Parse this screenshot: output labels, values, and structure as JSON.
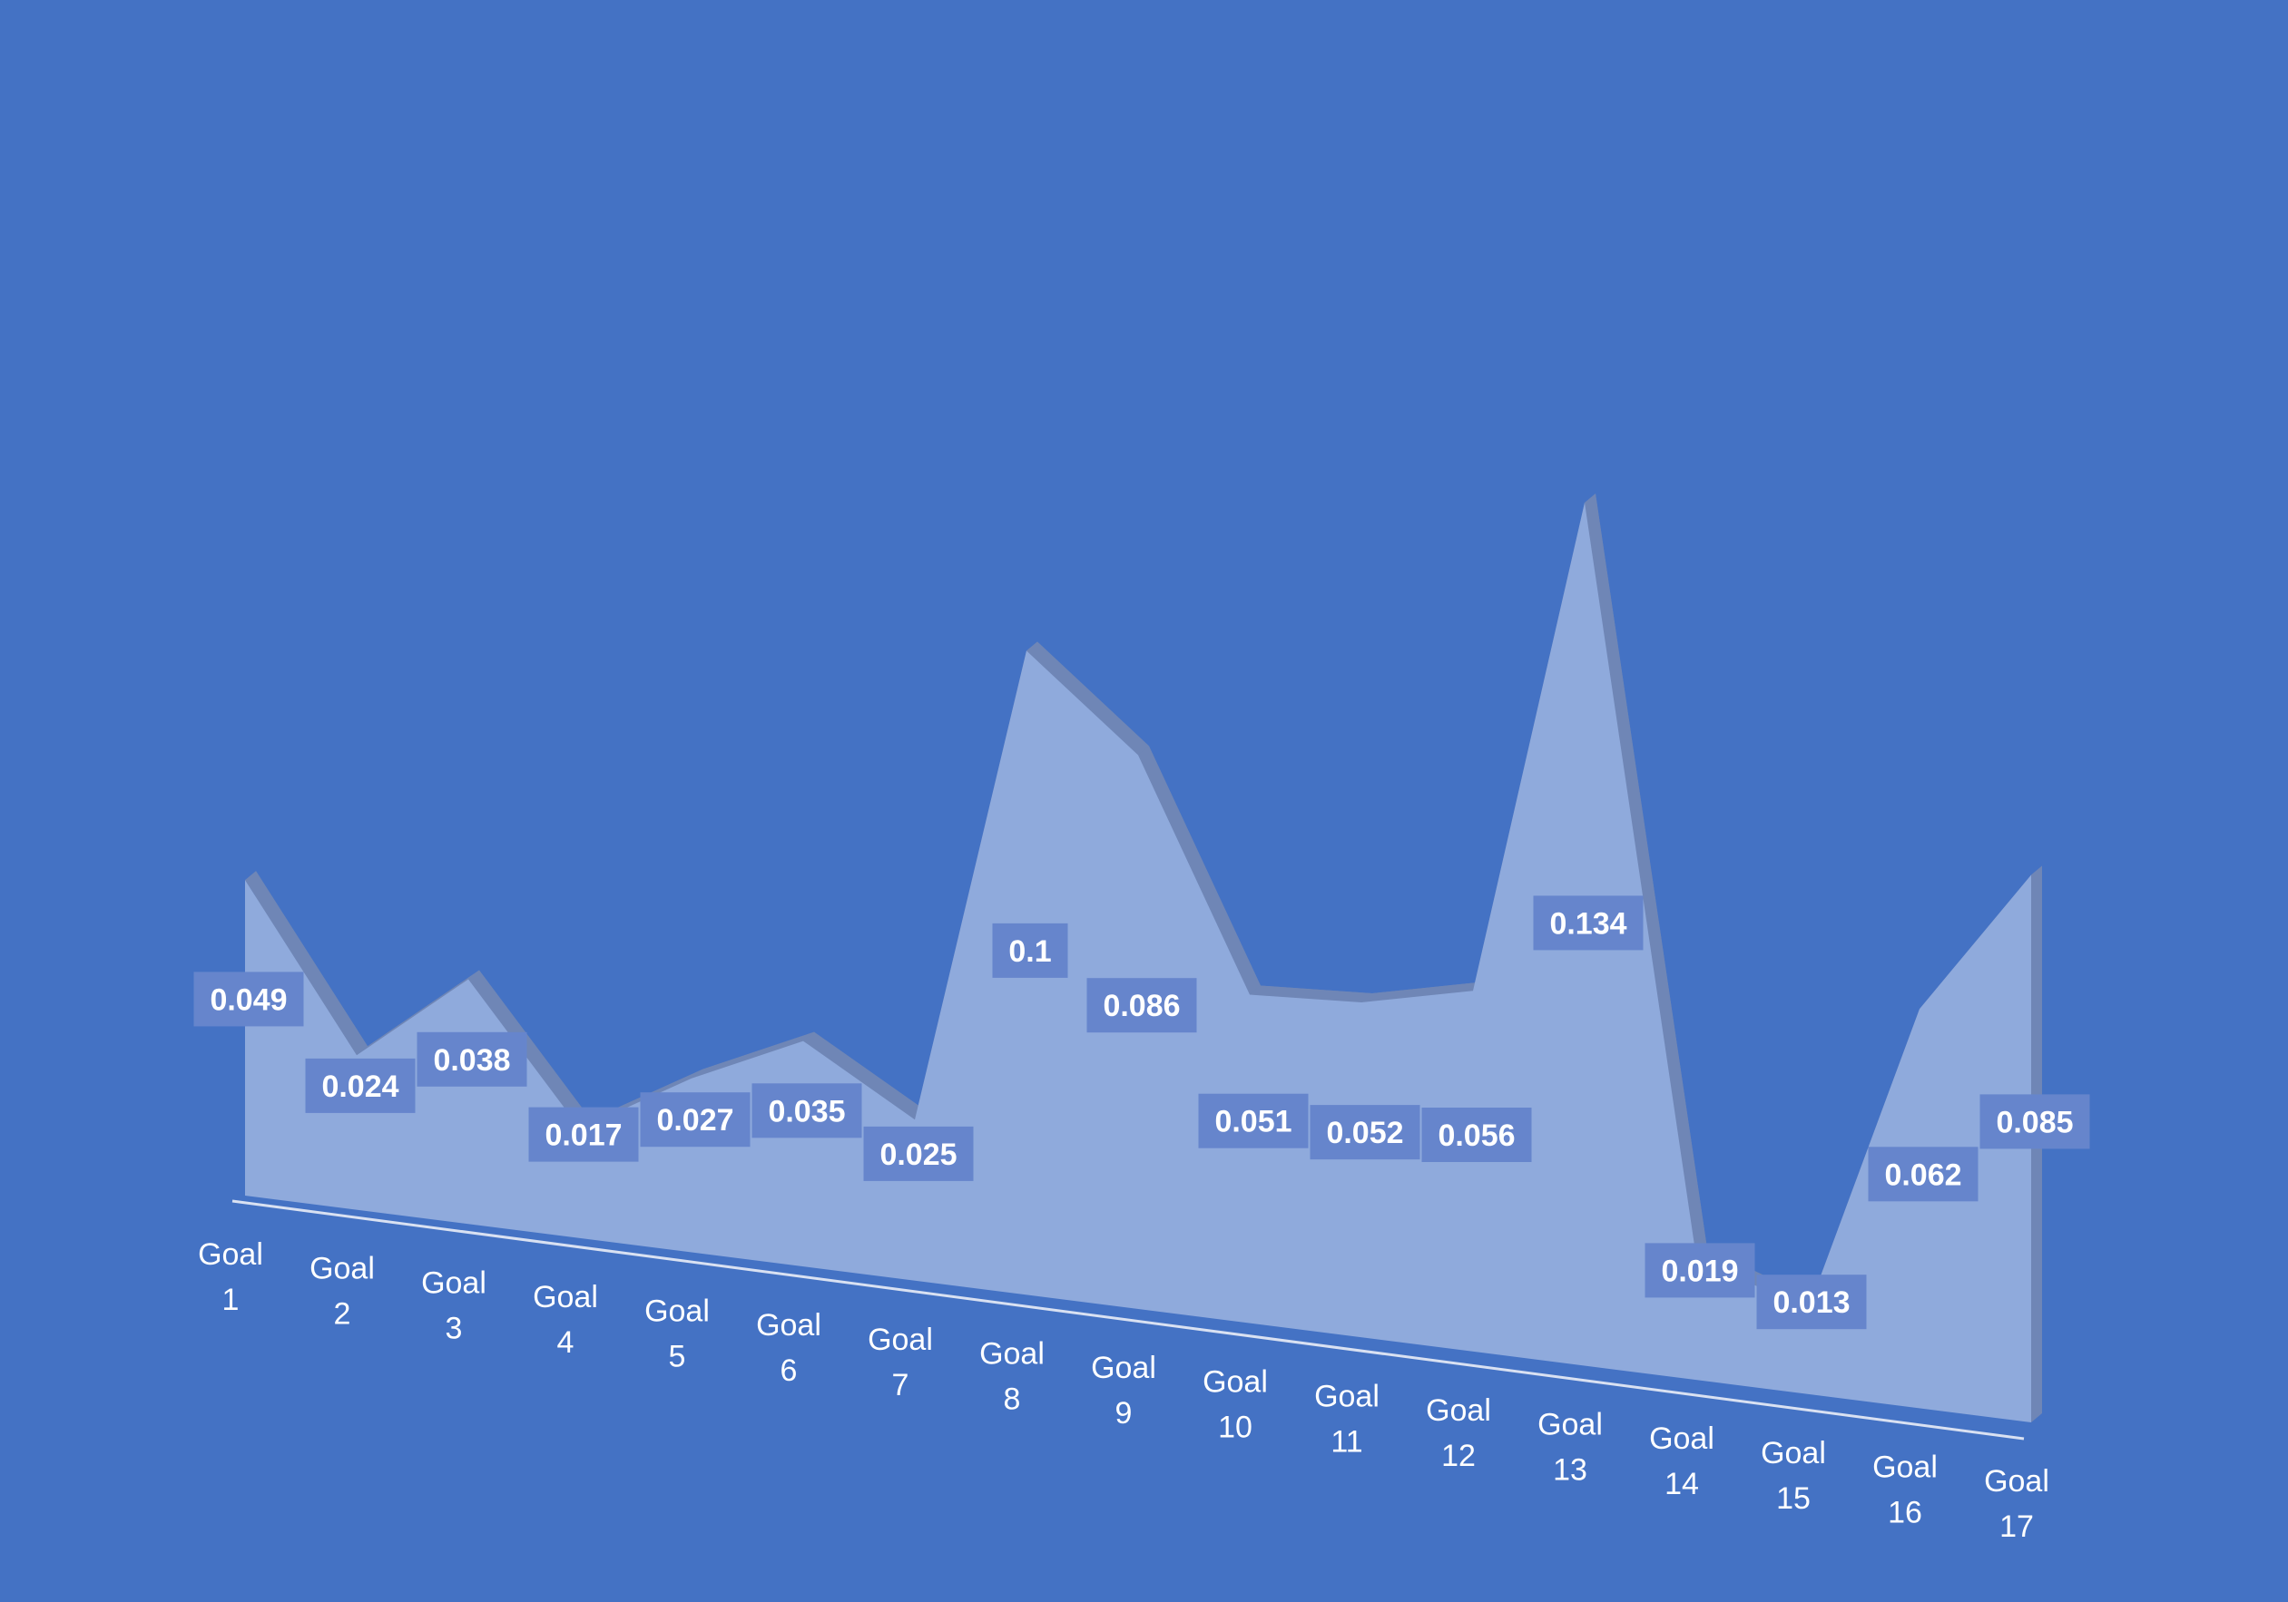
{
  "chart_data": {
    "type": "area",
    "categories": [
      [
        "Goal",
        "1"
      ],
      [
        "Goal",
        "2"
      ],
      [
        "Goal",
        "3"
      ],
      [
        "Goal",
        "4"
      ],
      [
        "Goal",
        "5"
      ],
      [
        "Goal",
        "6"
      ],
      [
        "Goal",
        "7"
      ],
      [
        "Goal",
        "8"
      ],
      [
        "Goal",
        "9"
      ],
      [
        "Goal",
        "10"
      ],
      [
        "Goal",
        "11"
      ],
      [
        "Goal",
        "12"
      ],
      [
        "Goal",
        "13"
      ],
      [
        "Goal",
        "14"
      ],
      [
        "Goal",
        "15"
      ],
      [
        "Goal",
        "16"
      ],
      [
        "Goal",
        "17"
      ]
    ],
    "values": [
      0.049,
      0.024,
      0.038,
      0.017,
      0.027,
      0.035,
      0.025,
      0.1,
      0.086,
      0.051,
      0.052,
      0.056,
      0.134,
      0.019,
      0.013,
      0.062,
      0.085
    ],
    "data_labels": [
      "0.049",
      "0.024",
      "0.038",
      "0.017",
      "0.027",
      "0.035",
      "0.025",
      "0.1",
      "0.086",
      "0.051",
      "0.052",
      "0.056",
      "0.134",
      "0.019",
      "0.013",
      "0.062",
      "0.085"
    ],
    "title": "",
    "xlabel": "",
    "ylabel": "",
    "legend": "none",
    "grid": false,
    "style": "3d-area",
    "colors": {
      "background": "#4472c4",
      "area_fill": "#8faadc",
      "area_side": "#6f86b6",
      "label_box": "#6685cc",
      "label_text": "#ffffff",
      "axis_line": "#d9e1f2",
      "tick_text": "#ffffff"
    }
  }
}
